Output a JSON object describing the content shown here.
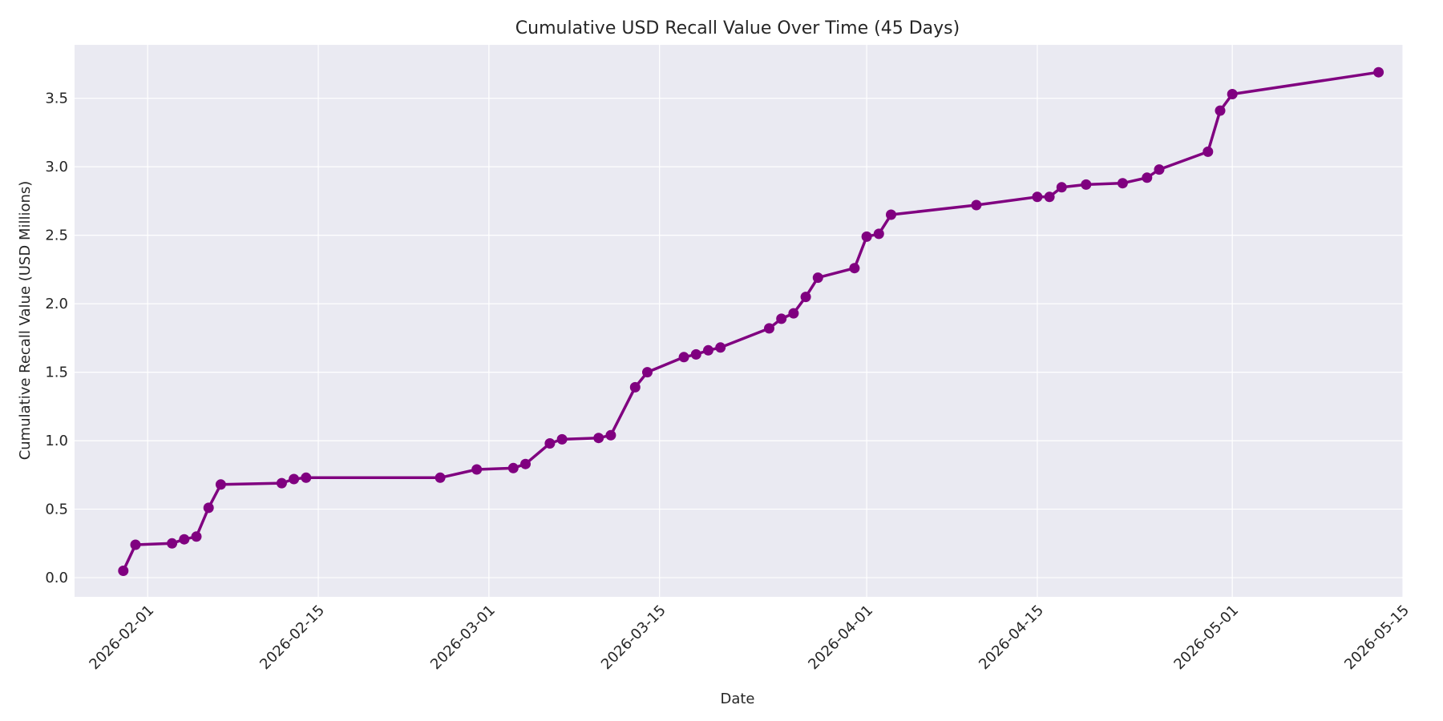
{
  "chart_data": {
    "type": "line",
    "title": "Cumulative USD Recall Value Over Time (45 Days)",
    "xlabel": "Date",
    "ylabel": "Cumulative Recall Value (USD Millions)",
    "xlim": [
      "2026-01-26",
      "2026-05-15"
    ],
    "ylim": [
      -0.14,
      3.89
    ],
    "grid": true,
    "x_ticks": [
      "2026-02-01",
      "2026-02-15",
      "2026-03-01",
      "2026-03-15",
      "2026-04-01",
      "2026-04-15",
      "2026-05-01",
      "2026-05-15"
    ],
    "y_ticks": [
      0.0,
      0.5,
      1.0,
      1.5,
      2.0,
      2.5,
      3.0,
      3.5
    ],
    "y_tick_labels": [
      "0.0",
      "0.5",
      "1.0",
      "1.5",
      "2.0",
      "2.5",
      "3.0",
      "3.5"
    ],
    "series": [
      {
        "color": "#800080",
        "x": [
          "2026-01-30",
          "2026-01-31",
          "2026-02-03",
          "2026-02-04",
          "2026-02-05",
          "2026-02-06",
          "2026-02-07",
          "2026-02-12",
          "2026-02-13",
          "2026-02-14",
          "2026-02-25",
          "2026-02-28",
          "2026-03-03",
          "2026-03-04",
          "2026-03-06",
          "2026-03-07",
          "2026-03-10",
          "2026-03-11",
          "2026-03-13",
          "2026-03-14",
          "2026-03-17",
          "2026-03-18",
          "2026-03-19",
          "2026-03-20",
          "2026-03-24",
          "2026-03-25",
          "2026-03-26",
          "2026-03-27",
          "2026-03-28",
          "2026-03-31",
          "2026-04-01",
          "2026-04-02",
          "2026-04-03",
          "2026-04-10",
          "2026-04-15",
          "2026-04-16",
          "2026-04-17",
          "2026-04-19",
          "2026-04-22",
          "2026-04-24",
          "2026-04-25",
          "2026-04-29",
          "2026-04-30",
          "2026-05-01",
          "2026-05-13"
        ],
        "y": [
          0.05,
          0.24,
          0.25,
          0.28,
          0.3,
          0.51,
          0.68,
          0.69,
          0.72,
          0.73,
          0.73,
          0.79,
          0.8,
          0.83,
          0.98,
          1.01,
          1.02,
          1.04,
          1.39,
          1.5,
          1.61,
          1.63,
          1.66,
          1.68,
          1.82,
          1.89,
          1.93,
          2.05,
          2.19,
          2.26,
          2.49,
          2.51,
          2.65,
          2.72,
          2.78,
          2.78,
          2.85,
          2.87,
          2.88,
          2.92,
          2.98,
          3.11,
          3.41,
          3.53,
          3.69
        ]
      }
    ]
  }
}
